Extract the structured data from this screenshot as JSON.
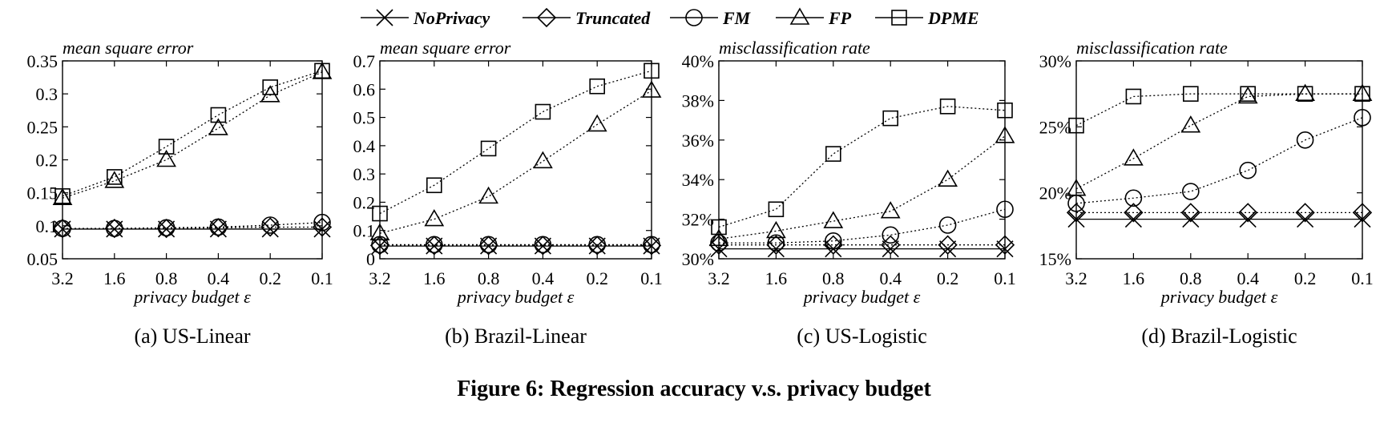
{
  "legend": [
    {
      "name": "NoPrivacy",
      "marker": "x",
      "dash": ""
    },
    {
      "name": "Truncated",
      "marker": "diamond",
      "dash": "2,3"
    },
    {
      "name": "FM",
      "marker": "circle",
      "dash": "2,3"
    },
    {
      "name": "FP",
      "marker": "triangle",
      "dash": "2,3"
    },
    {
      "name": "DPME",
      "marker": "square",
      "dash": "2,3"
    }
  ],
  "figure_caption": "Figure 6: Regression accuracy v.s. privacy budget",
  "chart_data": [
    {
      "type": "line",
      "caption": "(a) US-Linear",
      "ylabel": "mean square error",
      "xlabel": "privacy budget ε",
      "categories": [
        "3.2",
        "1.6",
        "0.8",
        "0.4",
        "0.2",
        "0.1"
      ],
      "ylim": [
        0.05,
        0.35
      ],
      "yticks": [
        0.05,
        0.1,
        0.15,
        0.2,
        0.25,
        0.3,
        0.35
      ],
      "ytick_labels": [
        "0.05",
        "0.1",
        "0.15",
        "0.2",
        "0.25",
        "0.3",
        "0.35"
      ],
      "series": [
        {
          "name": "NoPrivacy",
          "values": [
            0.095,
            0.095,
            0.095,
            0.095,
            0.095,
            0.095
          ]
        },
        {
          "name": "Truncated",
          "values": [
            0.096,
            0.096,
            0.096,
            0.097,
            0.098,
            0.098
          ]
        },
        {
          "name": "FM",
          "values": [
            0.096,
            0.096,
            0.097,
            0.098,
            0.101,
            0.105
          ]
        },
        {
          "name": "FP",
          "values": [
            0.142,
            0.168,
            0.2,
            0.248,
            0.298,
            0.333
          ]
        },
        {
          "name": "DPME",
          "values": [
            0.145,
            0.174,
            0.22,
            0.268,
            0.31,
            0.335
          ]
        }
      ]
    },
    {
      "type": "line",
      "caption": "(b) Brazil-Linear",
      "ylabel": "mean square error",
      "xlabel": "privacy budget ε",
      "categories": [
        "3.2",
        "1.6",
        "0.8",
        "0.4",
        "0.2",
        "0.1"
      ],
      "ylim": [
        0,
        0.7
      ],
      "yticks": [
        0,
        0.1,
        0.2,
        0.3,
        0.4,
        0.5,
        0.6,
        0.7
      ],
      "ytick_labels": [
        "0",
        "0.1",
        "0.2",
        "0.3",
        "0.4",
        "0.5",
        "0.6",
        "0.7"
      ],
      "series": [
        {
          "name": "NoPrivacy",
          "values": [
            0.045,
            0.045,
            0.045,
            0.045,
            0.045,
            0.045
          ]
        },
        {
          "name": "Truncated",
          "values": [
            0.047,
            0.047,
            0.047,
            0.047,
            0.047,
            0.047
          ]
        },
        {
          "name": "FM",
          "values": [
            0.05,
            0.05,
            0.05,
            0.05,
            0.05,
            0.05
          ]
        },
        {
          "name": "FP",
          "values": [
            0.09,
            0.14,
            0.22,
            0.345,
            0.475,
            0.595
          ]
        },
        {
          "name": "DPME",
          "values": [
            0.16,
            0.26,
            0.39,
            0.52,
            0.61,
            0.665
          ]
        }
      ]
    },
    {
      "type": "line",
      "caption": "(c) US-Logistic",
      "ylabel": "misclassification rate",
      "xlabel": "privacy budget ε",
      "categories": [
        "3.2",
        "1.6",
        "0.8",
        "0.4",
        "0.2",
        "0.1"
      ],
      "ylim": [
        30,
        40
      ],
      "yticks": [
        30,
        32,
        34,
        36,
        38,
        40
      ],
      "ytick_labels": [
        "30%",
        "32%",
        "34%",
        "36%",
        "38%",
        "40%"
      ],
      "series": [
        {
          "name": "NoPrivacy",
          "values": [
            30.5,
            30.5,
            30.5,
            30.5,
            30.5,
            30.5
          ]
        },
        {
          "name": "Truncated",
          "values": [
            30.7,
            30.7,
            30.7,
            30.7,
            30.7,
            30.7
          ]
        },
        {
          "name": "FM",
          "values": [
            30.8,
            30.8,
            30.9,
            31.2,
            31.7,
            32.5
          ]
        },
        {
          "name": "FP",
          "values": [
            31.0,
            31.4,
            31.9,
            32.4,
            34.0,
            36.2
          ]
        },
        {
          "name": "DPME",
          "values": [
            31.6,
            32.5,
            35.3,
            37.1,
            37.7,
            37.5
          ]
        }
      ]
    },
    {
      "type": "line",
      "caption": "(d) Brazil-Logistic",
      "ylabel": "misclassification rate",
      "xlabel": "privacy budget ε",
      "categories": [
        "3.2",
        "1.6",
        "0.8",
        "0.4",
        "0.2",
        "0.1"
      ],
      "ylim": [
        15,
        30
      ],
      "yticks": [
        15,
        20,
        25,
        30
      ],
      "ytick_labels": [
        "15%",
        "20%",
        "25%",
        "30%"
      ],
      "series": [
        {
          "name": "NoPrivacy",
          "values": [
            18.0,
            18.0,
            18.0,
            18.0,
            18.0,
            18.0
          ]
        },
        {
          "name": "Truncated",
          "values": [
            18.5,
            18.5,
            18.5,
            18.5,
            18.5,
            18.5
          ]
        },
        {
          "name": "FM",
          "values": [
            19.2,
            19.6,
            20.1,
            21.7,
            24.0,
            25.7
          ]
        },
        {
          "name": "FP",
          "values": [
            20.3,
            22.6,
            25.1,
            27.3,
            27.5,
            27.5
          ]
        },
        {
          "name": "DPME",
          "values": [
            25.1,
            27.3,
            27.5,
            27.5,
            27.5,
            27.5
          ]
        }
      ]
    }
  ]
}
